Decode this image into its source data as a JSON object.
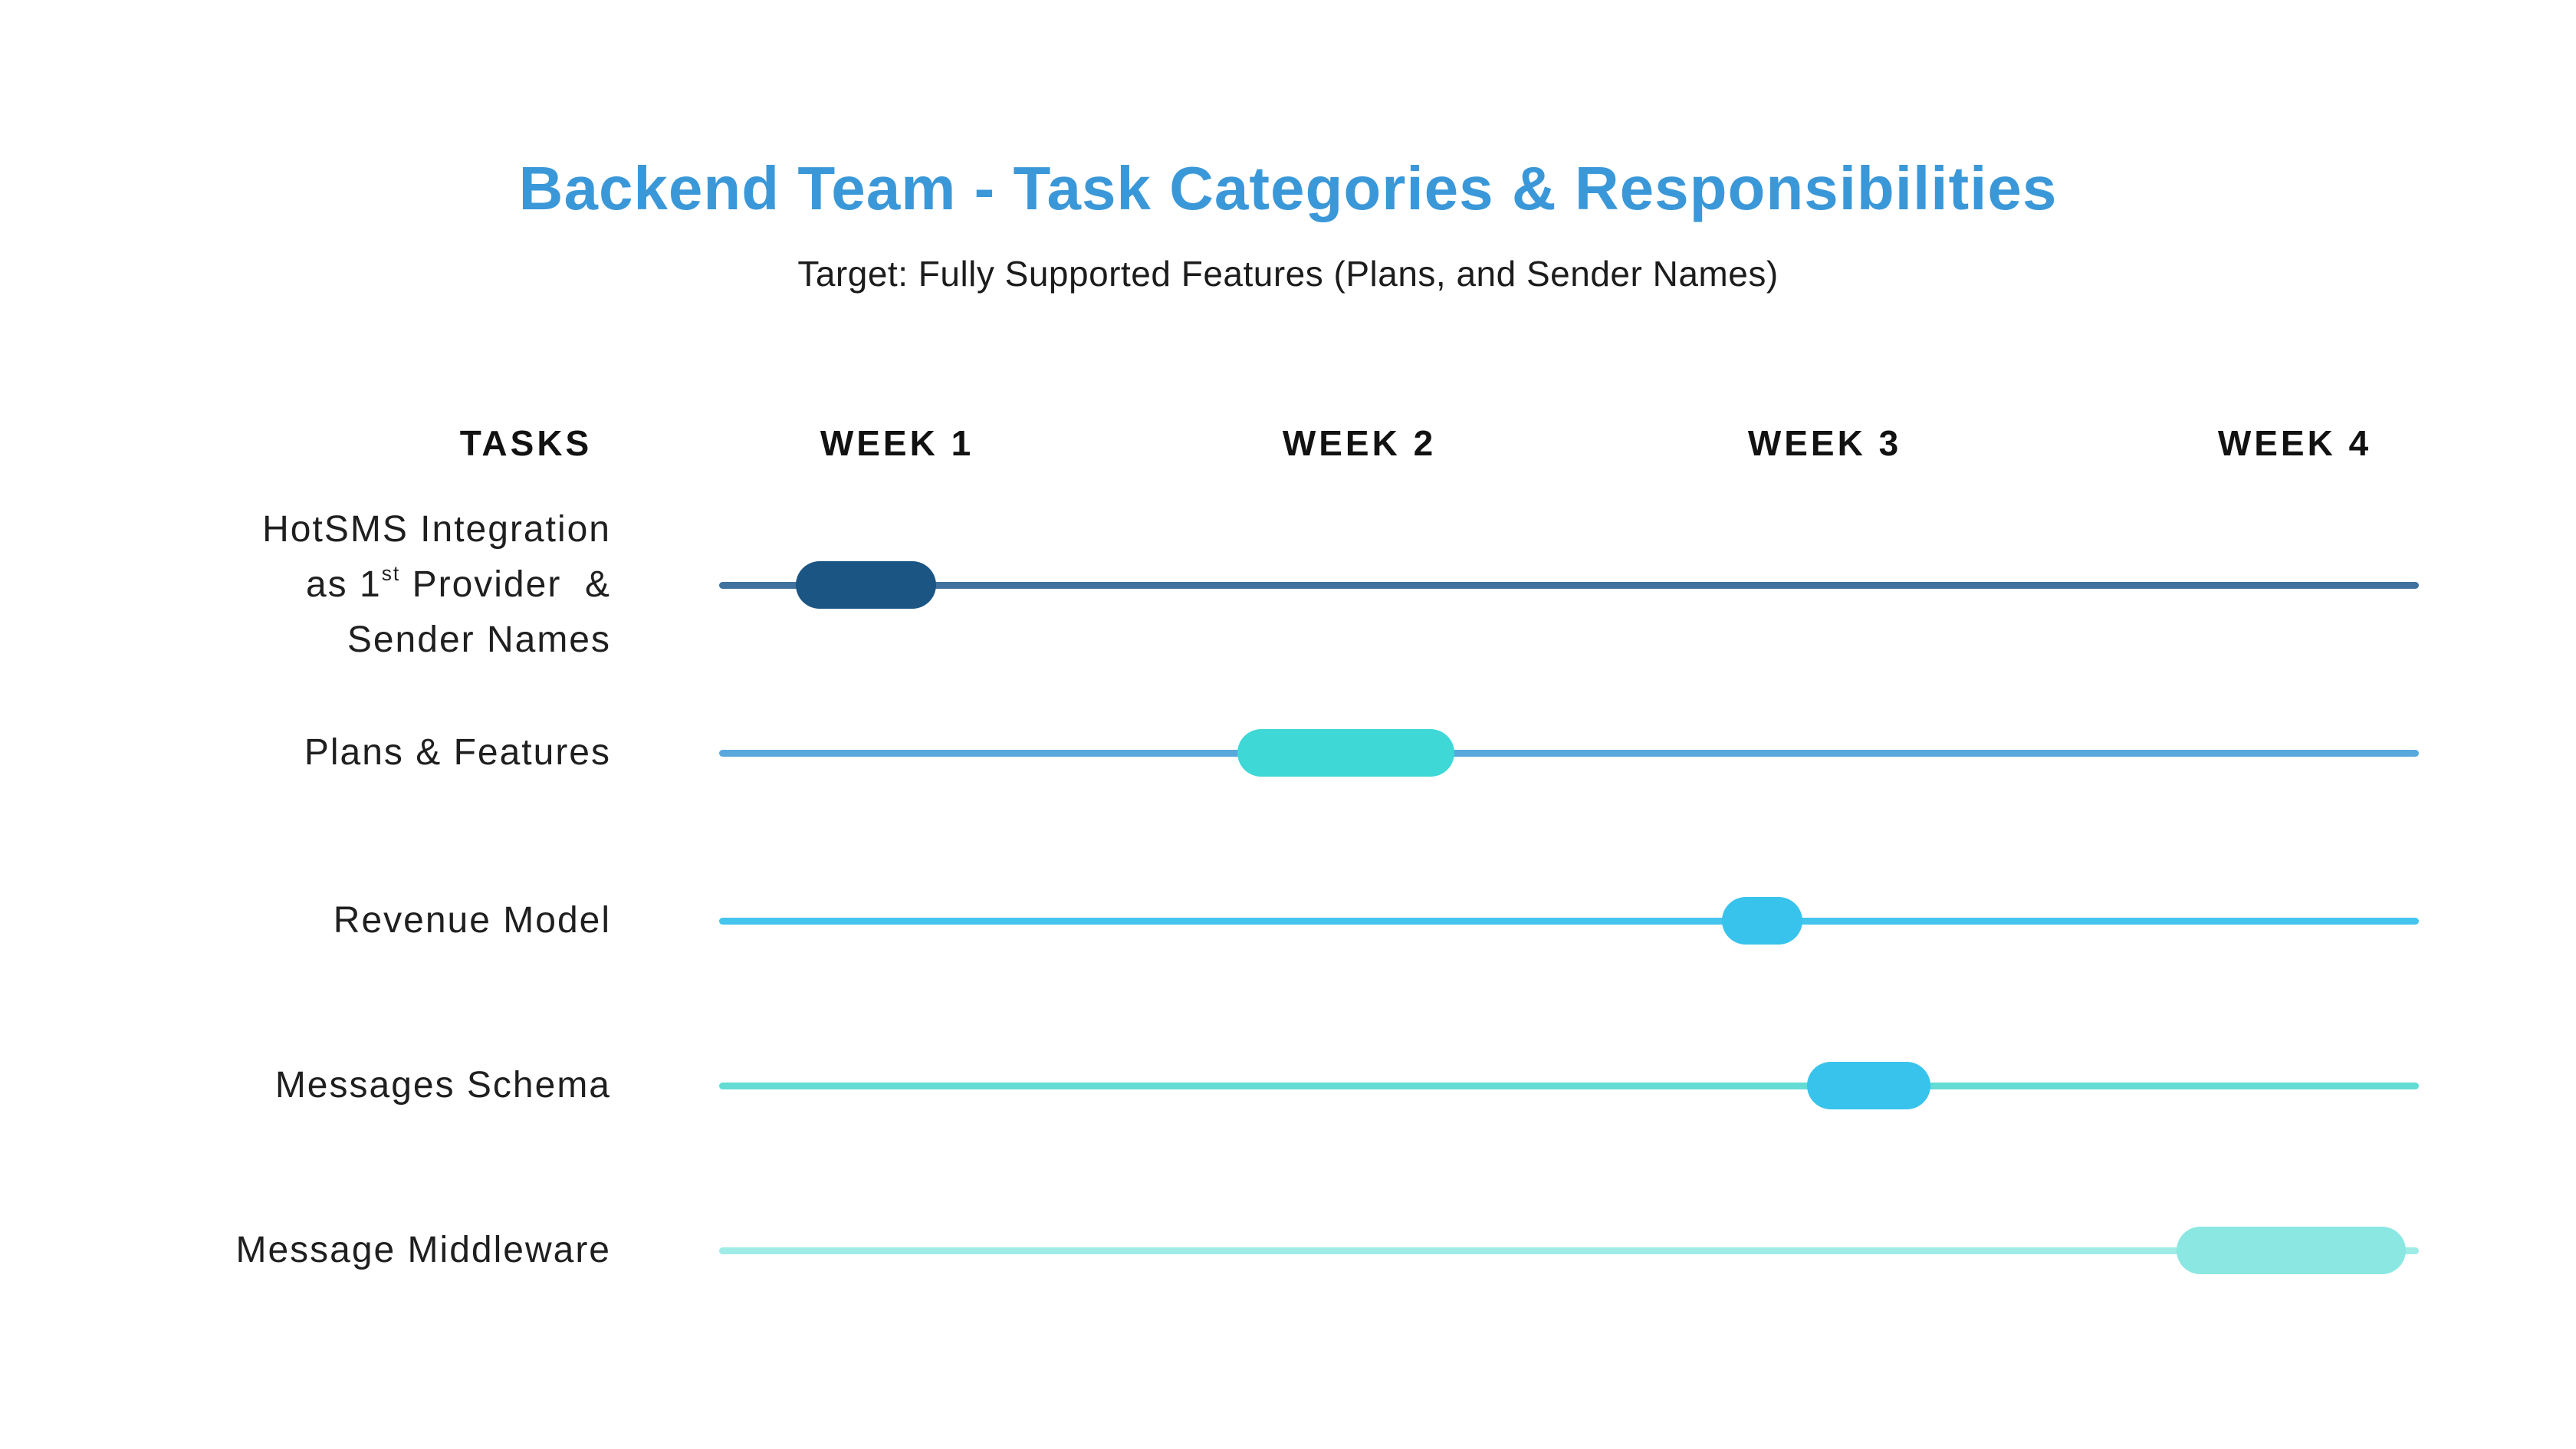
{
  "title": "Backend Team - Task Categories & Responsibilities",
  "subtitle": "Target: Fully Supported Features (Plans, and Sender Names)",
  "palette": {
    "title_blue": "#3b98d8",
    "text_dark": "#1f1f1f"
  },
  "columns": {
    "tasks_label": "TASKS",
    "weeks": [
      "WEEK 1",
      "WEEK 2",
      "WEEK 3",
      "WEEK 4"
    ]
  },
  "rows": [
    {
      "label_lines": [
        "HotSMS Integration",
        {
          "pre": "as 1",
          "sup": "st",
          "post": " Provider  &"
        },
        "Sender Names"
      ],
      "label_text": "HotSMS Integration as 1st Provider & Sender Names",
      "week": "Week 1",
      "start_week": 1.18,
      "end_week": 1.51,
      "line_color": "#3f729f",
      "pill_color": "#1b5584"
    },
    {
      "label_lines": [
        "Plans & Features"
      ],
      "label_text": "Plans & Features",
      "week": "Week 2",
      "start_week": 2.22,
      "end_week": 2.73,
      "line_color": "#58a8de",
      "pill_color": "#3ed8d6"
    },
    {
      "label_lines": [
        "Revenue Model"
      ],
      "label_text": "Revenue Model",
      "week": "Week 3",
      "start_week": 3.36,
      "end_week": 3.55,
      "line_color": "#45c5ee",
      "pill_color": "#38c3ec"
    },
    {
      "label_lines": [
        "Messages Schema"
      ],
      "label_text": "Messages Schema",
      "week": "Week 3",
      "start_week": 3.56,
      "end_week": 3.85,
      "line_color": "#63dcd4",
      "pill_color": "#38c3ec"
    },
    {
      "label_lines": [
        "Message Middleware"
      ],
      "label_text": "Message Middleware",
      "week": "Week 4",
      "start_week": 4.43,
      "end_week": 4.97,
      "line_color": "#9febe6",
      "pill_color": "#8ae7e2"
    }
  ],
  "chart_data": {
    "type": "gantt",
    "title": "Backend Team - Task Categories & Responsibilities",
    "subtitle": "Target: Fully Supported Features (Plans, and Sender Names)",
    "columns": [
      "TASKS",
      "WEEK 1",
      "WEEK 2",
      "WEEK 3",
      "WEEK 4"
    ],
    "timeline_range_weeks": [
      1,
      5
    ],
    "grid": "off",
    "legend": "none",
    "tasks": [
      {
        "name": "HotSMS Integration as 1st Provider & Sender Names",
        "assigned_week": "Week 1",
        "start_week": 1.18,
        "end_week": 1.51
      },
      {
        "name": "Plans & Features",
        "assigned_week": "Week 2",
        "start_week": 2.22,
        "end_week": 2.73
      },
      {
        "name": "Revenue Model",
        "assigned_week": "Week 3",
        "start_week": 3.36,
        "end_week": 3.55
      },
      {
        "name": "Messages Schema",
        "assigned_week": "Week 3",
        "start_week": 3.56,
        "end_week": 3.85
      },
      {
        "name": "Message Middleware",
        "assigned_week": "Week 4",
        "start_week": 4.43,
        "end_week": 4.97
      }
    ]
  }
}
